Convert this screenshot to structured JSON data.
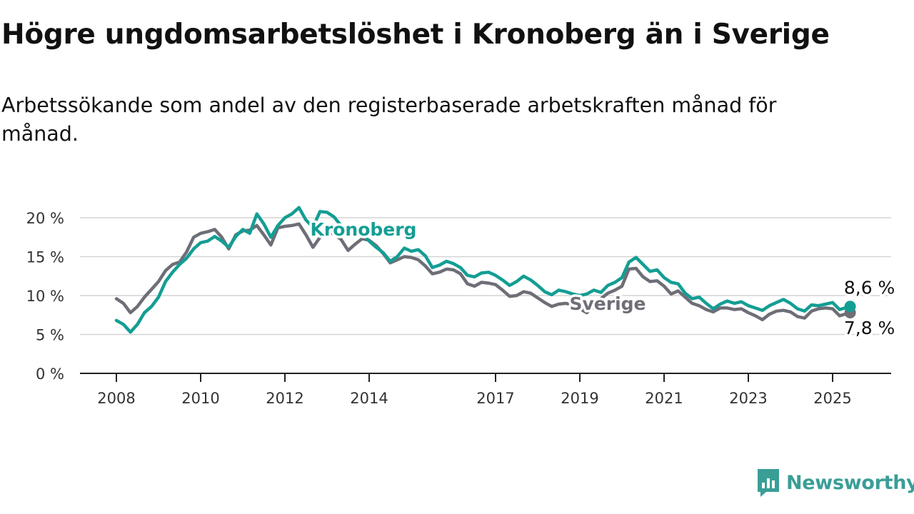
{
  "header": {
    "title": "Högre ungdomsarbetslöshet i Kronoberg än i Sverige",
    "subtitle": "Arbetssökande som andel av den registerbaserade arbetskraften månad för månad."
  },
  "brand": {
    "name": "Newsworthy",
    "icon": "newsworthy-logo-icon",
    "color": "#3a9e96"
  },
  "chart_data": {
    "type": "line",
    "title": "Högre ungdomsarbetslöshet i Kronoberg än i Sverige",
    "subtitle": "Arbetssökande som andel av den registerbaserade arbetskraften månad för månad.",
    "xlabel": "",
    "ylabel": "",
    "xlim": [
      "2008-01",
      "2025-06"
    ],
    "ylim": [
      0,
      20
    ],
    "y_ticks": [
      0,
      5,
      10,
      15,
      20
    ],
    "y_tick_labels": [
      "0 %",
      "5 %",
      "10 %",
      "15 %",
      "20 %"
    ],
    "x_ticks": [
      "2008",
      "2010",
      "2012",
      "2014",
      "2017",
      "2019",
      "2021",
      "2023",
      "2025"
    ],
    "grid": "horizontal",
    "legend": "inline-labels",
    "series": [
      {
        "name": "Kronoberg",
        "color": "#139e94",
        "end_label": "8,6 %",
        "points": [
          [
            "2008-01",
            6.8
          ],
          [
            "2008-03",
            6.3
          ],
          [
            "2008-05",
            5.3
          ],
          [
            "2008-07",
            6.3
          ],
          [
            "2008-09",
            7.8
          ],
          [
            "2008-11",
            8.6
          ],
          [
            "2009-01",
            9.8
          ],
          [
            "2009-03",
            11.8
          ],
          [
            "2009-05",
            13.0
          ],
          [
            "2009-07",
            14.0
          ],
          [
            "2009-09",
            14.8
          ],
          [
            "2009-11",
            16.0
          ],
          [
            "2010-01",
            16.8
          ],
          [
            "2010-03",
            17.0
          ],
          [
            "2010-05",
            17.6
          ],
          [
            "2010-07",
            17.0
          ],
          [
            "2010-09",
            16.2
          ],
          [
            "2010-11",
            17.6
          ],
          [
            "2011-01",
            18.5
          ],
          [
            "2011-03",
            18.0
          ],
          [
            "2011-05",
            20.5
          ],
          [
            "2011-07",
            19.2
          ],
          [
            "2011-09",
            17.5
          ],
          [
            "2011-11",
            19.0
          ],
          [
            "2012-01",
            20.0
          ],
          [
            "2012-03",
            20.5
          ],
          [
            "2012-05",
            21.3
          ],
          [
            "2012-07",
            19.7
          ],
          [
            "2012-09",
            18.8
          ],
          [
            "2012-11",
            20.8
          ],
          [
            "2013-01",
            20.7
          ],
          [
            "2013-03",
            20.1
          ],
          [
            "2013-05",
            19.0
          ],
          [
            "2013-07",
            18.0
          ],
          [
            "2013-09",
            18.2
          ],
          [
            "2013-11",
            17.9
          ],
          [
            "2014-01",
            17.0
          ],
          [
            "2014-03",
            16.2
          ],
          [
            "2014-05",
            15.5
          ],
          [
            "2014-07",
            14.4
          ],
          [
            "2014-09",
            15.0
          ],
          [
            "2014-11",
            16.1
          ],
          [
            "2015-01",
            15.7
          ],
          [
            "2015-03",
            15.9
          ],
          [
            "2015-05",
            15.1
          ],
          [
            "2015-07",
            13.6
          ],
          [
            "2015-09",
            13.9
          ],
          [
            "2015-11",
            14.4
          ],
          [
            "2016-01",
            14.1
          ],
          [
            "2016-03",
            13.6
          ],
          [
            "2016-05",
            12.6
          ],
          [
            "2016-07",
            12.4
          ],
          [
            "2016-09",
            12.9
          ],
          [
            "2016-11",
            13.0
          ],
          [
            "2017-01",
            12.6
          ],
          [
            "2017-03",
            12.0
          ],
          [
            "2017-05",
            11.3
          ],
          [
            "2017-07",
            11.8
          ],
          [
            "2017-09",
            12.5
          ],
          [
            "2017-11",
            12.0
          ],
          [
            "2018-01",
            11.3
          ],
          [
            "2018-03",
            10.5
          ],
          [
            "2018-05",
            10.1
          ],
          [
            "2018-07",
            10.7
          ],
          [
            "2018-09",
            10.5
          ],
          [
            "2018-11",
            10.2
          ],
          [
            "2019-01",
            10.0
          ],
          [
            "2019-03",
            10.2
          ],
          [
            "2019-05",
            10.7
          ],
          [
            "2019-07",
            10.4
          ],
          [
            "2019-09",
            11.3
          ],
          [
            "2019-11",
            11.7
          ],
          [
            "2020-01",
            12.3
          ],
          [
            "2020-03",
            14.3
          ],
          [
            "2020-05",
            14.9
          ],
          [
            "2020-07",
            14.0
          ],
          [
            "2020-09",
            13.1
          ],
          [
            "2020-11",
            13.3
          ],
          [
            "2021-01",
            12.3
          ],
          [
            "2021-03",
            11.7
          ],
          [
            "2021-05",
            11.5
          ],
          [
            "2021-07",
            10.3
          ],
          [
            "2021-09",
            9.6
          ],
          [
            "2021-11",
            9.8
          ],
          [
            "2022-01",
            9.0
          ],
          [
            "2022-03",
            8.3
          ],
          [
            "2022-05",
            8.9
          ],
          [
            "2022-07",
            9.3
          ],
          [
            "2022-09",
            9.0
          ],
          [
            "2022-11",
            9.2
          ],
          [
            "2023-01",
            8.7
          ],
          [
            "2023-03",
            8.4
          ],
          [
            "2023-05",
            8.1
          ],
          [
            "2023-07",
            8.7
          ],
          [
            "2023-09",
            9.1
          ],
          [
            "2023-11",
            9.5
          ],
          [
            "2024-01",
            9.0
          ],
          [
            "2024-03",
            8.3
          ],
          [
            "2024-05",
            8.0
          ],
          [
            "2024-07",
            8.8
          ],
          [
            "2024-09",
            8.7
          ],
          [
            "2024-11",
            8.9
          ],
          [
            "2025-01",
            9.1
          ],
          [
            "2025-03",
            8.2
          ],
          [
            "2025-06",
            8.6
          ]
        ]
      },
      {
        "name": "Sverige",
        "color": "#6e6e77",
        "end_label": "7,8 %",
        "points": [
          [
            "2008-01",
            9.6
          ],
          [
            "2008-03",
            9.0
          ],
          [
            "2008-05",
            7.8
          ],
          [
            "2008-07",
            8.6
          ],
          [
            "2008-09",
            9.8
          ],
          [
            "2008-11",
            10.8
          ],
          [
            "2009-01",
            11.8
          ],
          [
            "2009-03",
            13.2
          ],
          [
            "2009-05",
            14.0
          ],
          [
            "2009-07",
            14.3
          ],
          [
            "2009-09",
            15.6
          ],
          [
            "2009-11",
            17.5
          ],
          [
            "2010-01",
            18.0
          ],
          [
            "2010-03",
            18.2
          ],
          [
            "2010-05",
            18.5
          ],
          [
            "2010-07",
            17.5
          ],
          [
            "2010-09",
            16.0
          ],
          [
            "2010-11",
            17.8
          ],
          [
            "2011-01",
            18.3
          ],
          [
            "2011-03",
            18.4
          ],
          [
            "2011-05",
            19.0
          ],
          [
            "2011-07",
            17.8
          ],
          [
            "2011-09",
            16.5
          ],
          [
            "2011-11",
            18.7
          ],
          [
            "2012-01",
            18.9
          ],
          [
            "2012-03",
            19.0
          ],
          [
            "2012-05",
            19.2
          ],
          [
            "2012-07",
            17.8
          ],
          [
            "2012-09",
            16.2
          ],
          [
            "2012-11",
            17.5
          ],
          [
            "2013-01",
            18.2
          ],
          [
            "2013-03",
            17.9
          ],
          [
            "2013-05",
            17.2
          ],
          [
            "2013-07",
            15.8
          ],
          [
            "2013-09",
            16.6
          ],
          [
            "2013-11",
            17.3
          ],
          [
            "2014-01",
            17.1
          ],
          [
            "2014-03",
            16.4
          ],
          [
            "2014-05",
            15.4
          ],
          [
            "2014-07",
            14.2
          ],
          [
            "2014-09",
            14.6
          ],
          [
            "2014-11",
            15.0
          ],
          [
            "2015-01",
            14.9
          ],
          [
            "2015-03",
            14.6
          ],
          [
            "2015-05",
            13.8
          ],
          [
            "2015-07",
            12.8
          ],
          [
            "2015-09",
            13.0
          ],
          [
            "2015-11",
            13.4
          ],
          [
            "2016-01",
            13.3
          ],
          [
            "2016-03",
            12.8
          ],
          [
            "2016-05",
            11.5
          ],
          [
            "2016-07",
            11.2
          ],
          [
            "2016-09",
            11.7
          ],
          [
            "2016-11",
            11.6
          ],
          [
            "2017-01",
            11.4
          ],
          [
            "2017-03",
            10.7
          ],
          [
            "2017-05",
            9.9
          ],
          [
            "2017-07",
            10.0
          ],
          [
            "2017-09",
            10.5
          ],
          [
            "2017-11",
            10.3
          ],
          [
            "2018-01",
            9.7
          ],
          [
            "2018-03",
            9.1
          ],
          [
            "2018-05",
            8.6
          ],
          [
            "2018-07",
            8.9
          ],
          [
            "2018-09",
            9.0
          ],
          [
            "2018-11",
            8.8
          ],
          [
            "2019-01",
            8.3
          ],
          [
            "2019-03",
            7.8
          ],
          [
            "2019-05",
            8.6
          ],
          [
            "2019-07",
            9.6
          ],
          [
            "2019-09",
            10.3
          ],
          [
            "2019-11",
            10.7
          ],
          [
            "2020-01",
            11.2
          ],
          [
            "2020-03",
            13.4
          ],
          [
            "2020-05",
            13.5
          ],
          [
            "2020-07",
            12.4
          ],
          [
            "2020-09",
            11.8
          ],
          [
            "2020-11",
            11.9
          ],
          [
            "2021-01",
            11.2
          ],
          [
            "2021-03",
            10.2
          ],
          [
            "2021-05",
            10.6
          ],
          [
            "2021-07",
            9.8
          ],
          [
            "2021-09",
            9.0
          ],
          [
            "2021-11",
            8.7
          ],
          [
            "2022-01",
            8.2
          ],
          [
            "2022-03",
            7.9
          ],
          [
            "2022-05",
            8.4
          ],
          [
            "2022-07",
            8.4
          ],
          [
            "2022-09",
            8.2
          ],
          [
            "2022-11",
            8.3
          ],
          [
            "2023-01",
            7.8
          ],
          [
            "2023-03",
            7.4
          ],
          [
            "2023-05",
            6.9
          ],
          [
            "2023-07",
            7.6
          ],
          [
            "2023-09",
            8.0
          ],
          [
            "2023-11",
            8.1
          ],
          [
            "2024-01",
            7.9
          ],
          [
            "2024-03",
            7.3
          ],
          [
            "2024-05",
            7.1
          ],
          [
            "2024-07",
            8.0
          ],
          [
            "2024-09",
            8.3
          ],
          [
            "2024-11",
            8.4
          ],
          [
            "2025-01",
            8.3
          ],
          [
            "2025-03",
            7.4
          ],
          [
            "2025-06",
            7.8
          ]
        ]
      }
    ]
  }
}
